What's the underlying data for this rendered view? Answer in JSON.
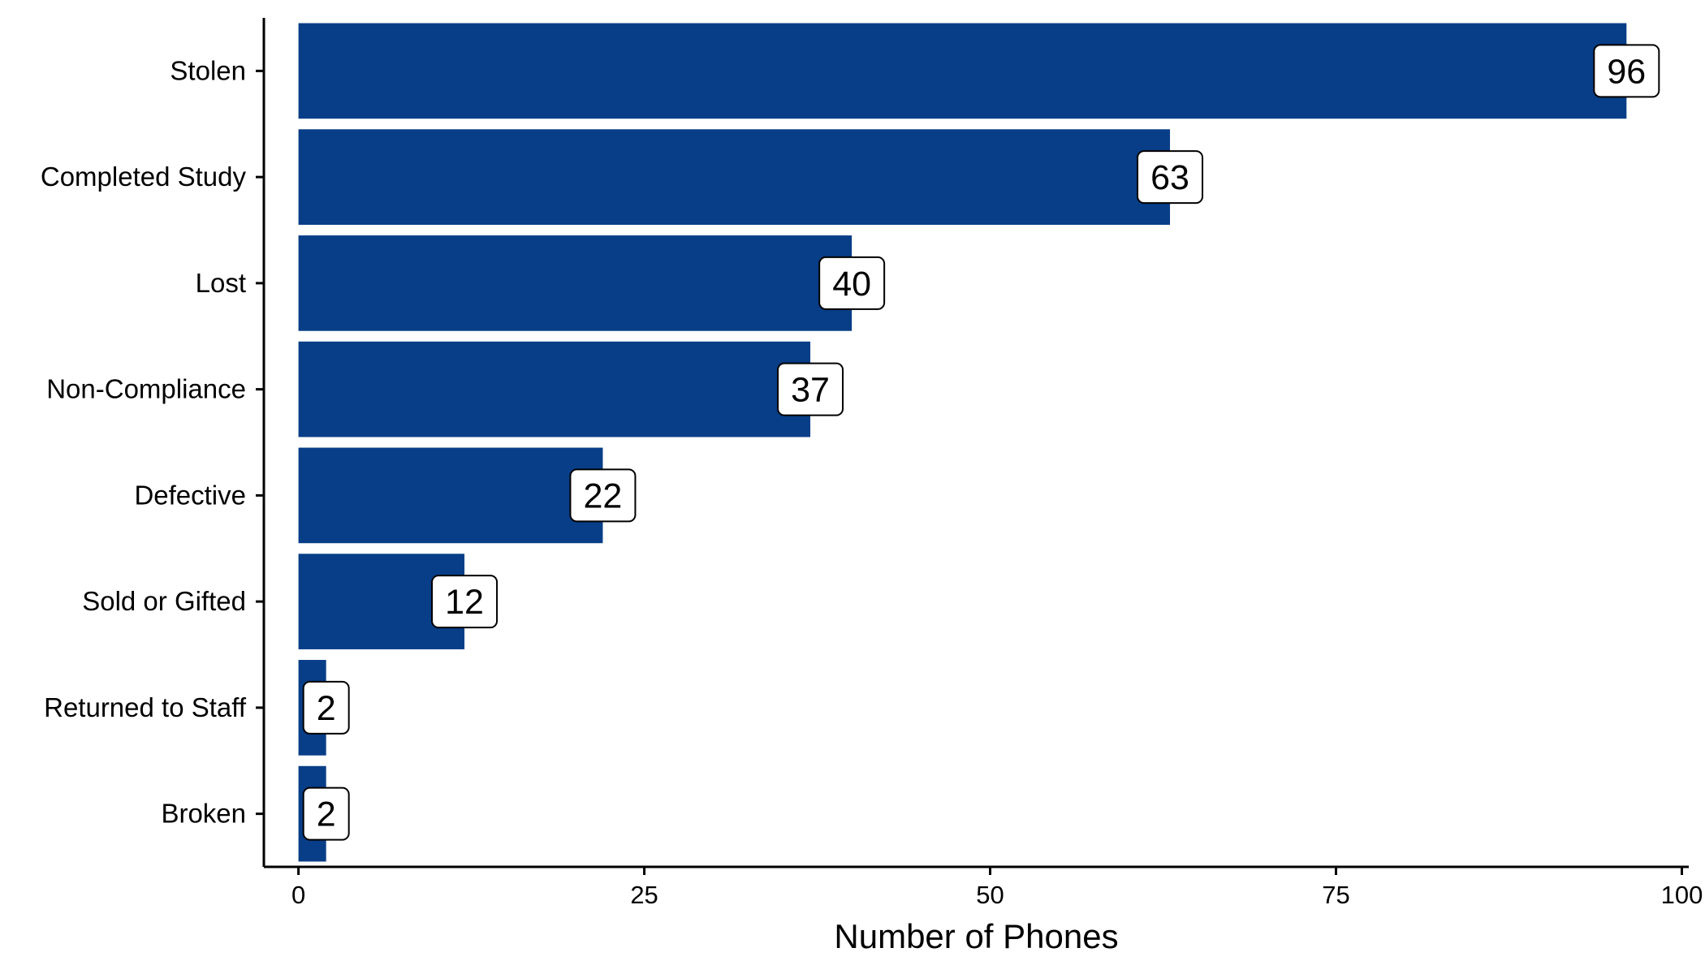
{
  "chart_data": {
    "type": "bar",
    "orientation": "horizontal",
    "title": "",
    "xlabel": "Number of Phones",
    "ylabel": "",
    "categories": [
      "Stolen",
      "Completed Study",
      "Lost",
      "Non-Compliance",
      "Defective",
      "Sold or Gifted",
      "Returned to Staff",
      "Broken"
    ],
    "values": [
      96,
      63,
      40,
      37,
      22,
      12,
      2,
      2
    ],
    "data_labels": [
      "96",
      "63",
      "40",
      "37",
      "22",
      "12",
      "2",
      "2"
    ],
    "x_ticks": [
      0,
      25,
      50,
      75,
      100
    ],
    "x_tick_labels": [
      "0",
      "25",
      "50",
      "75",
      "100"
    ],
    "xlim": [
      -2.5,
      100.5
    ],
    "grid": false,
    "legend": "none",
    "bar_color": "#073e87"
  }
}
